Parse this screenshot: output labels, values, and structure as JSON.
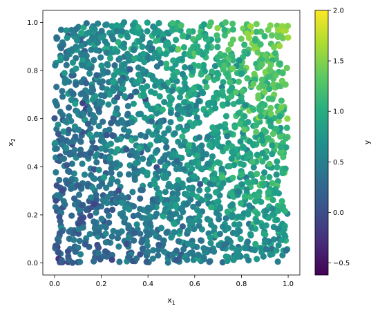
{
  "chart_data": {
    "type": "scatter",
    "title": "",
    "xlabel": "x",
    "xlabel_subscript": "1",
    "ylabel": "x",
    "ylabel_subscript": "2",
    "xlim": [
      -0.05,
      1.05
    ],
    "ylim": [
      -0.05,
      1.05
    ],
    "xticks": [
      "0.0",
      "0.2",
      "0.4",
      "0.6",
      "0.8",
      "1.0"
    ],
    "yticks": [
      "0.0",
      "0.2",
      "0.4",
      "0.6",
      "0.8",
      "1.0"
    ],
    "colormap": "viridis",
    "colorbar": {
      "label": "y",
      "range": [
        -0.62,
        2.0
      ],
      "ticks": [
        "−0.5",
        "0.0",
        "0.5",
        "1.0",
        "1.5",
        "2.0"
      ],
      "tick_values": [
        -0.5,
        0.0,
        0.5,
        1.0,
        1.5,
        2.0
      ]
    },
    "grid": false,
    "point_count": 2000,
    "x_range": [
      0,
      1
    ],
    "y_range": [
      0,
      1
    ],
    "trend": "y increases with x1 and with x2; highest values near x1 = 0.9, x2 = 0.8, lowest near x1 = 0.1, x2 = 0.2"
  }
}
